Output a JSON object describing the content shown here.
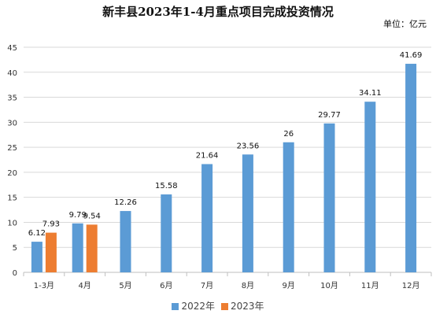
{
  "chart_data": {
    "type": "bar",
    "title": "新丰县2023年1-4月重点项目完成投资情况",
    "unit_note": "单位：亿元",
    "categories": [
      "1-3月",
      "4月",
      "5月",
      "6月",
      "7月",
      "8月",
      "9月",
      "10月",
      "11月",
      "12月"
    ],
    "series": [
      {
        "name": "2022年",
        "color": "#5B9BD5",
        "values": [
          6.12,
          9.79,
          12.26,
          15.58,
          21.64,
          23.56,
          26,
          29.77,
          34.11,
          41.69
        ],
        "labels": [
          "6.12",
          "9.79",
          "12.26",
          "15.58",
          "21.64",
          "23.56",
          "26",
          "29.77",
          "34.11",
          "41.69"
        ]
      },
      {
        "name": "2023年",
        "color": "#ED7D31",
        "values": [
          7.93,
          9.54,
          null,
          null,
          null,
          null,
          null,
          null,
          null,
          null
        ],
        "labels": [
          "7.93",
          "9.54",
          null,
          null,
          null,
          null,
          null,
          null,
          null,
          null
        ]
      }
    ],
    "y_ticks": [
      "0",
      "5",
      "10",
      "15",
      "20",
      "25",
      "30",
      "35",
      "40",
      "45"
    ],
    "ylim": [
      0,
      45
    ],
    "grid": true,
    "legend_position": "bottom"
  }
}
